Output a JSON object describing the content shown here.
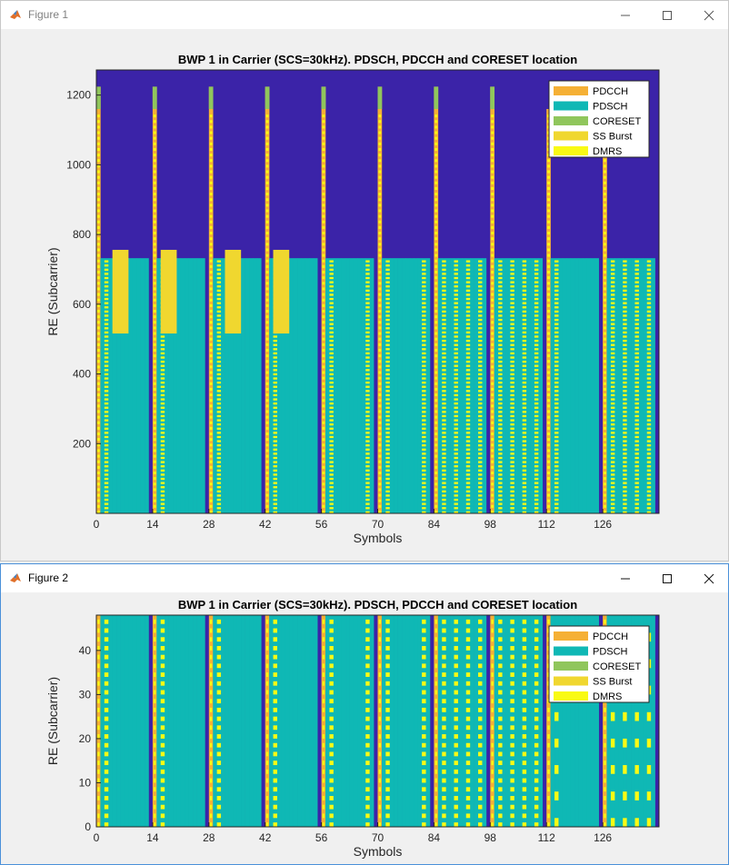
{
  "windows": [
    {
      "title": "Figure 1"
    },
    {
      "title": "Figure 2"
    }
  ],
  "colors": {
    "background": "#3b23a8",
    "pdsch": "#0fb8b5",
    "pdcch": "#f5b035",
    "coreset": "#90c65c",
    "ss_burst": "#f0d72f",
    "dmrs": "#f9fa14"
  },
  "legend": [
    "PDCCH",
    "PDSCH",
    "CORESET",
    "SS Burst",
    "DMRS"
  ],
  "chart_data": [
    {
      "type": "heatmap",
      "title": "BWP 1 in Carrier (SCS=30kHz). PDSCH, PDCCH and CORESET location",
      "xlabel": "Symbols",
      "ylabel": "RE (Subcarrier)",
      "xlim": [
        0,
        140
      ],
      "ylim": [
        0,
        1272
      ],
      "xticks": [
        0,
        14,
        28,
        42,
        56,
        70,
        84,
        98,
        112,
        126
      ],
      "yticks": [
        200,
        400,
        600,
        800,
        1000,
        1200
      ],
      "pdsch_subcarrier_range": [
        0,
        732
      ],
      "coreset_subcarrier_range": [
        0,
        1224
      ],
      "ss_burst_blocks": [
        {
          "symbols": [
            4,
            8
          ],
          "subcarriers": [
            516,
            756
          ]
        },
        {
          "symbols": [
            16,
            20
          ],
          "subcarriers": [
            516,
            756
          ]
        },
        {
          "symbols": [
            32,
            36
          ],
          "subcarriers": [
            516,
            756
          ]
        },
        {
          "symbols": [
            44,
            48
          ],
          "subcarriers": [
            516,
            756
          ]
        }
      ],
      "legend_position": "top-right"
    },
    {
      "type": "heatmap",
      "title": "BWP 1 in Carrier (SCS=30kHz). PDSCH, PDCCH and CORESET location",
      "xlabel": "Symbols",
      "ylabel": "RE (Subcarrier)",
      "xlim": [
        0,
        140
      ],
      "ylim": [
        0,
        48
      ],
      "xticks": [
        0,
        14,
        28,
        42,
        56,
        70,
        84,
        98,
        112,
        126
      ],
      "yticks": [
        0,
        10,
        20,
        30,
        40
      ],
      "legend_position": "top-right"
    }
  ]
}
